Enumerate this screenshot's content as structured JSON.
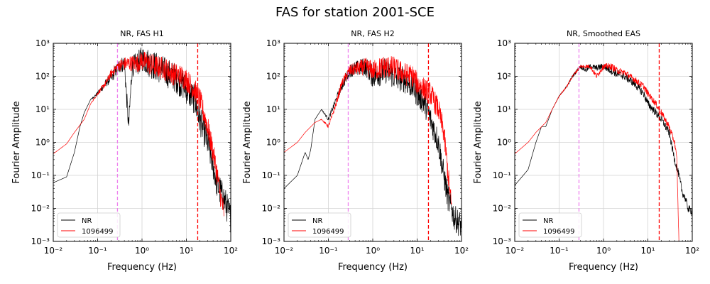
{
  "figure": {
    "suptitle": "FAS for station 2001-SCE"
  },
  "colors": {
    "nr": "#000000",
    "sim": "#ff0000",
    "fmin_line": "#ee82ee",
    "fmax_line": "#ff0000",
    "grid": "#d3d3d3"
  },
  "chart_data": [
    {
      "type": "line",
      "title": "NR, FAS H1",
      "xlabel": "Frequency (Hz)",
      "ylabel": "Fourier Amplitude",
      "xscale": "log",
      "yscale": "log",
      "xlim": [
        0.01,
        100
      ],
      "ylim": [
        0.001,
        1000
      ],
      "x_ticks": [
        "10⁻²",
        "10⁻¹",
        "10⁰",
        "10¹",
        "10²"
      ],
      "y_ticks": [
        "10⁻³",
        "10⁻²",
        "10⁻¹",
        "10⁰",
        "10¹",
        "10²",
        "10³"
      ],
      "grid": true,
      "legend_position": "lower-left",
      "vlines": [
        {
          "x": 0.28,
          "style": "dashed",
          "color": "#ee82ee"
        },
        {
          "x": 18,
          "style": "dashed",
          "color": "#ff0000"
        }
      ],
      "series": [
        {
          "name": "NR",
          "color": "#000000",
          "noise": 0.45,
          "points": [
            [
              0.01,
              0.06
            ],
            [
              0.02,
              0.09
            ],
            [
              0.03,
              0.5
            ],
            [
              0.04,
              3
            ],
            [
              0.05,
              8
            ],
            [
              0.07,
              20
            ],
            [
              0.1,
              30
            ],
            [
              0.15,
              60
            ],
            [
              0.2,
              90
            ],
            [
              0.3,
              200
            ],
            [
              0.4,
              250
            ],
            [
              0.5,
              3
            ],
            [
              0.6,
              200
            ],
            [
              0.8,
              250
            ],
            [
              1,
              350
            ],
            [
              2,
              200
            ],
            [
              3,
              150
            ],
            [
              5,
              100
            ],
            [
              8,
              60
            ],
            [
              10,
              40
            ],
            [
              15,
              20
            ],
            [
              20,
              5
            ],
            [
              30,
              1
            ],
            [
              40,
              0.2
            ],
            [
              50,
              0.05
            ],
            [
              70,
              0.02
            ],
            [
              100,
              0.005
            ]
          ]
        },
        {
          "name": "1096499",
          "color": "#ff0000",
          "noise": 0.35,
          "points": [
            [
              0.01,
              0.45
            ],
            [
              0.02,
              0.9
            ],
            [
              0.03,
              2
            ],
            [
              0.05,
              5
            ],
            [
              0.07,
              15
            ],
            [
              0.1,
              30
            ],
            [
              0.15,
              60
            ],
            [
              0.2,
              120
            ],
            [
              0.3,
              220
            ],
            [
              0.5,
              250
            ],
            [
              0.8,
              250
            ],
            [
              1,
              300
            ],
            [
              2,
              200
            ],
            [
              3,
              180
            ],
            [
              5,
              120
            ],
            [
              8,
              100
            ],
            [
              10,
              80
            ],
            [
              15,
              40
            ],
            [
              20,
              20
            ],
            [
              30,
              3
            ],
            [
              40,
              0.5
            ],
            [
              50,
              0.1
            ],
            [
              60,
              0.02
            ],
            [
              70,
              0.008
            ]
          ]
        }
      ]
    },
    {
      "type": "line",
      "title": "NR, FAS H2",
      "xlabel": "Frequency (Hz)",
      "ylabel": "Fourier Amplitude",
      "xscale": "log",
      "yscale": "log",
      "xlim": [
        0.01,
        100
      ],
      "ylim": [
        0.001,
        1000
      ],
      "x_ticks": [
        "10⁻²",
        "10⁻¹",
        "10⁰",
        "10¹",
        "10²"
      ],
      "y_ticks": [
        "10⁻³",
        "10⁻²",
        "10⁻¹",
        "10⁰",
        "10¹",
        "10²",
        "10³"
      ],
      "grid": true,
      "legend_position": "lower-left",
      "vlines": [
        {
          "x": 0.28,
          "style": "dashed",
          "color": "#ee82ee"
        },
        {
          "x": 18,
          "style": "dashed",
          "color": "#ff0000"
        }
      ],
      "series": [
        {
          "name": "NR",
          "color": "#000000",
          "noise": 0.4,
          "points": [
            [
              0.01,
              0.04
            ],
            [
              0.02,
              0.1
            ],
            [
              0.03,
              0.5
            ],
            [
              0.035,
              0.3
            ],
            [
              0.04,
              0.6
            ],
            [
              0.05,
              5
            ],
            [
              0.07,
              10
            ],
            [
              0.1,
              5
            ],
            [
              0.15,
              20
            ],
            [
              0.2,
              50
            ],
            [
              0.3,
              150
            ],
            [
              0.5,
              180
            ],
            [
              0.7,
              200
            ],
            [
              1,
              100
            ],
            [
              2,
              150
            ],
            [
              3,
              100
            ],
            [
              5,
              80
            ],
            [
              8,
              50
            ],
            [
              10,
              30
            ],
            [
              15,
              15
            ],
            [
              20,
              5
            ],
            [
              30,
              1
            ],
            [
              40,
              0.1
            ],
            [
              50,
              0.02
            ],
            [
              70,
              0.005
            ],
            [
              100,
              0.003
            ]
          ]
        },
        {
          "name": "1096499",
          "color": "#ff0000",
          "noise": 0.35,
          "points": [
            [
              0.01,
              0.5
            ],
            [
              0.02,
              1
            ],
            [
              0.03,
              2
            ],
            [
              0.05,
              4
            ],
            [
              0.07,
              5
            ],
            [
              0.1,
              3
            ],
            [
              0.15,
              15
            ],
            [
              0.2,
              60
            ],
            [
              0.3,
              150
            ],
            [
              0.5,
              180
            ],
            [
              0.7,
              200
            ],
            [
              1,
              150
            ],
            [
              2,
              200
            ],
            [
              3,
              180
            ],
            [
              5,
              120
            ],
            [
              8,
              100
            ],
            [
              10,
              60
            ],
            [
              15,
              40
            ],
            [
              20,
              30
            ],
            [
              30,
              10
            ],
            [
              40,
              2
            ],
            [
              50,
              0.1
            ],
            [
              60,
              0.01
            ]
          ]
        }
      ]
    },
    {
      "type": "line",
      "title": "NR, Smoothed EAS",
      "xlabel": "Frequency (Hz)",
      "ylabel": "Fourier Amplitude",
      "xscale": "log",
      "yscale": "log",
      "xlim": [
        0.01,
        100
      ],
      "ylim": [
        0.001,
        1000
      ],
      "x_ticks": [
        "10⁻²",
        "10⁻¹",
        "10⁰",
        "10¹",
        "10²"
      ],
      "y_ticks": [
        "10⁻³",
        "10⁻²",
        "10⁻¹",
        "10⁰",
        "10¹",
        "10²",
        "10³"
      ],
      "grid": true,
      "legend_position": "lower-left",
      "vlines": [
        {
          "x": 0.28,
          "style": "dashed",
          "color": "#ee82ee"
        },
        {
          "x": 18,
          "style": "dashed",
          "color": "#ff0000"
        }
      ],
      "series": [
        {
          "name": "NR",
          "color": "#000000",
          "noise": 0.12,
          "points": [
            [
              0.01,
              0.05
            ],
            [
              0.02,
              0.15
            ],
            [
              0.03,
              1
            ],
            [
              0.04,
              3
            ],
            [
              0.05,
              3
            ],
            [
              0.07,
              10
            ],
            [
              0.1,
              25
            ],
            [
              0.15,
              50
            ],
            [
              0.2,
              100
            ],
            [
              0.3,
              200
            ],
            [
              0.4,
              150
            ],
            [
              0.5,
              200
            ],
            [
              0.7,
              180
            ],
            [
              1,
              200
            ],
            [
              1.5,
              150
            ],
            [
              2,
              120
            ],
            [
              3,
              100
            ],
            [
              5,
              60
            ],
            [
              8,
              30
            ],
            [
              10,
              15
            ],
            [
              15,
              8
            ],
            [
              20,
              5
            ],
            [
              30,
              2
            ],
            [
              40,
              0.3
            ],
            [
              50,
              0.1
            ],
            [
              60,
              0.03
            ],
            [
              70,
              0.02
            ],
            [
              80,
              0.01
            ],
            [
              100,
              0.008
            ]
          ]
        },
        {
          "name": "1096499",
          "color": "#ff0000",
          "noise": 0.1,
          "points": [
            [
              0.01,
              0.45
            ],
            [
              0.02,
              1
            ],
            [
              0.03,
              2
            ],
            [
              0.05,
              4
            ],
            [
              0.07,
              10
            ],
            [
              0.1,
              25
            ],
            [
              0.15,
              50
            ],
            [
              0.2,
              100
            ],
            [
              0.3,
              200
            ],
            [
              0.5,
              200
            ],
            [
              0.7,
              100
            ],
            [
              1,
              200
            ],
            [
              1.5,
              200
            ],
            [
              2,
              150
            ],
            [
              3,
              130
            ],
            [
              5,
              80
            ],
            [
              8,
              50
            ],
            [
              10,
              30
            ],
            [
              15,
              15
            ],
            [
              20,
              8
            ],
            [
              30,
              3
            ],
            [
              40,
              1
            ],
            [
              45,
              0.3
            ],
            [
              50,
              0.001
            ]
          ]
        }
      ]
    }
  ]
}
